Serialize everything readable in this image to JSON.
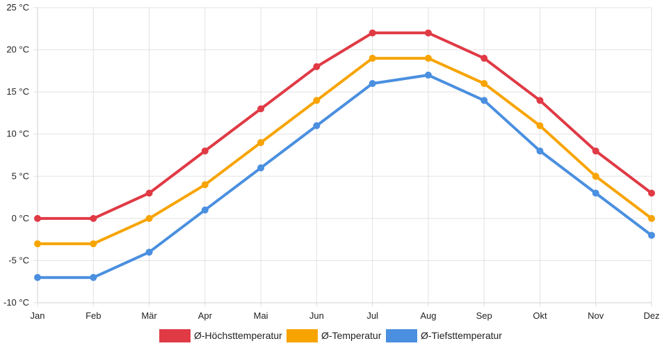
{
  "chart_data": {
    "type": "line",
    "title": "",
    "xlabel": "",
    "ylabel": "",
    "categories": [
      "Jan",
      "Feb",
      "Mär",
      "Apr",
      "Mai",
      "Jun",
      "Jul",
      "Aug",
      "Sep",
      "Okt",
      "Nov",
      "Dez"
    ],
    "y_ticks": [
      {
        "value": -10,
        "label": "-10 °C"
      },
      {
        "value": -5,
        "label": "-5 °C"
      },
      {
        "value": 0,
        "label": "0 °C"
      },
      {
        "value": 5,
        "label": "5 °C"
      },
      {
        "value": 10,
        "label": "10 °C"
      },
      {
        "value": 15,
        "label": "15 °C"
      },
      {
        "value": 20,
        "label": "20 °C"
      },
      {
        "value": 25,
        "label": "25 °C"
      }
    ],
    "ylim": [
      -10,
      25
    ],
    "grid": true,
    "legend_position": "bottom-center",
    "series": [
      {
        "key": "max",
        "name": "Ø-Höchsttemperatur",
        "color": "#e03a45",
        "values": [
          0,
          0,
          3,
          8,
          13,
          18,
          22,
          22,
          19,
          14,
          8,
          3
        ]
      },
      {
        "key": "avg",
        "name": "Ø-Temperatur",
        "color": "#f7a400",
        "values": [
          -3,
          -3,
          0,
          4,
          9,
          14,
          19,
          19,
          16,
          11,
          5,
          0
        ]
      },
      {
        "key": "min",
        "name": "Ø-Tiefsttemperatur",
        "color": "#4a8fe0",
        "values": [
          -7,
          -7,
          -4,
          1,
          6,
          11,
          16,
          17,
          14,
          8,
          3,
          -2
        ]
      }
    ]
  }
}
